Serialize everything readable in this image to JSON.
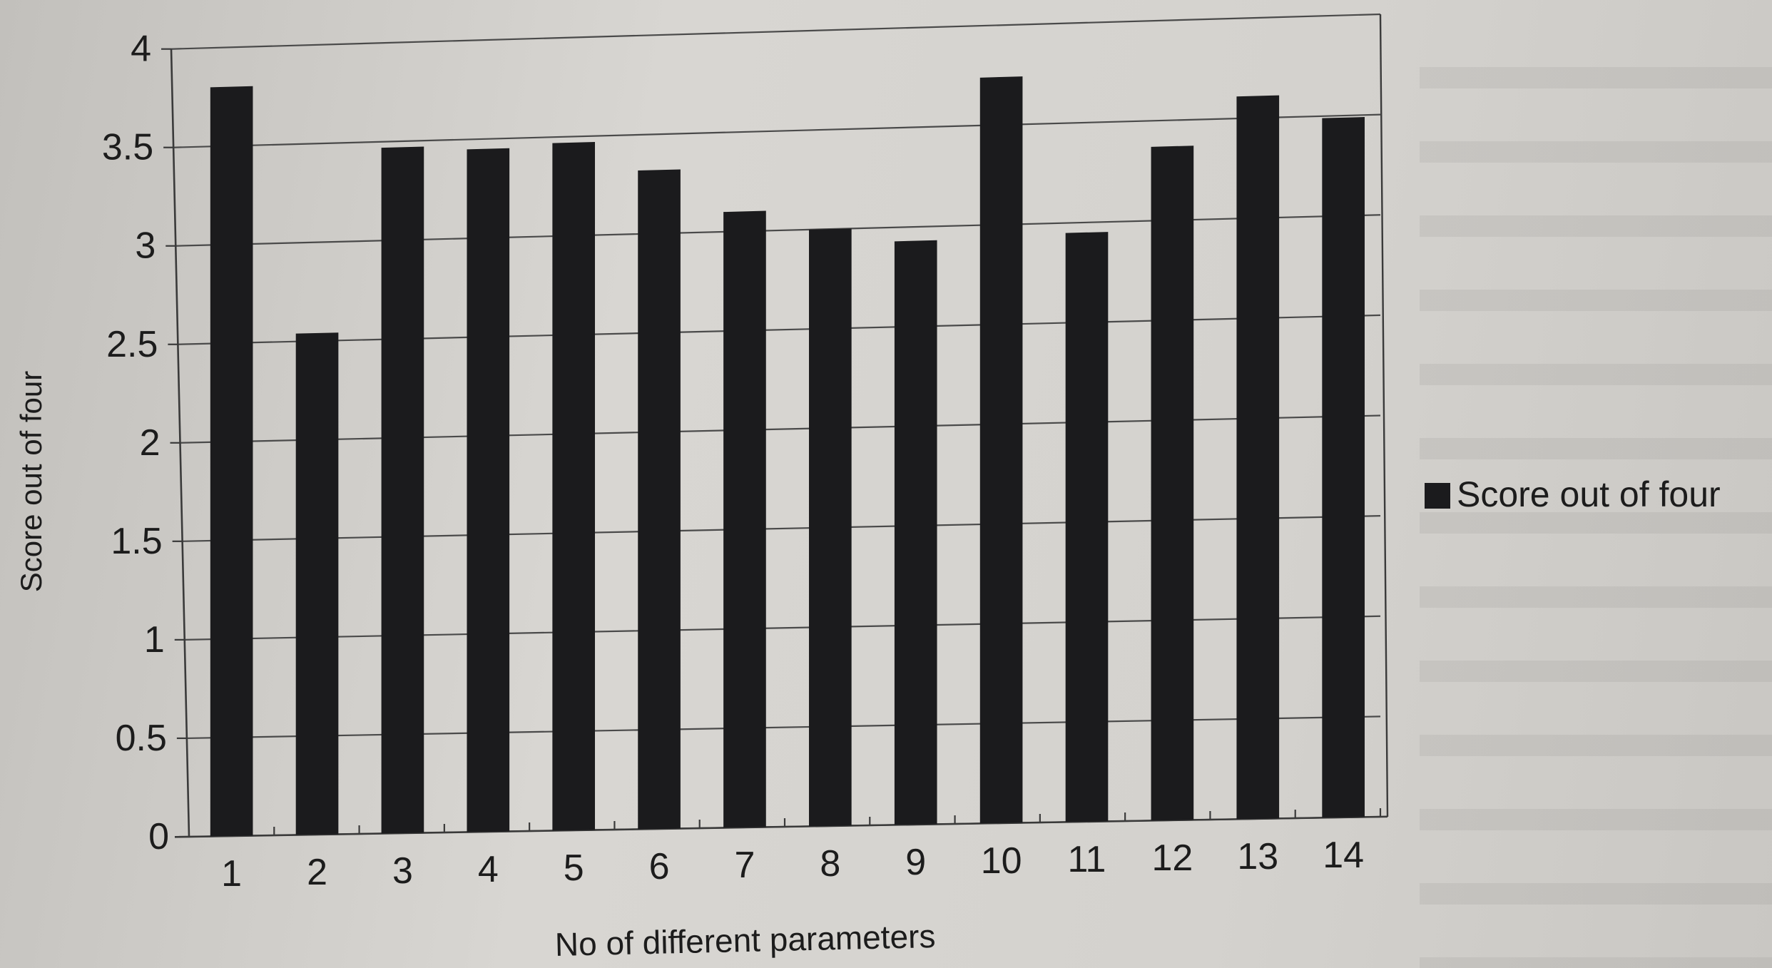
{
  "chart_data": {
    "type": "bar",
    "title": "",
    "xlabel": "No of different parameters",
    "ylabel": "Score out of four",
    "categories": [
      "1",
      "2",
      "3",
      "4",
      "5",
      "6",
      "7",
      "8",
      "9",
      "10",
      "11",
      "12",
      "13",
      "14"
    ],
    "series": [
      {
        "name": "Score out of four",
        "values": [
          3.8,
          2.54,
          3.47,
          3.45,
          3.47,
          3.32,
          3.1,
          3.0,
          2.93,
          3.74,
          2.95,
          3.37,
          3.61,
          3.49
        ],
        "color": "#1b1b1d"
      }
    ],
    "ylim": [
      0,
      4
    ],
    "yticks": [
      "0",
      "0.5",
      "1",
      "1.5",
      "2",
      "2.5",
      "3",
      "3.5",
      "4"
    ],
    "grid": true,
    "legend_position": "right"
  }
}
